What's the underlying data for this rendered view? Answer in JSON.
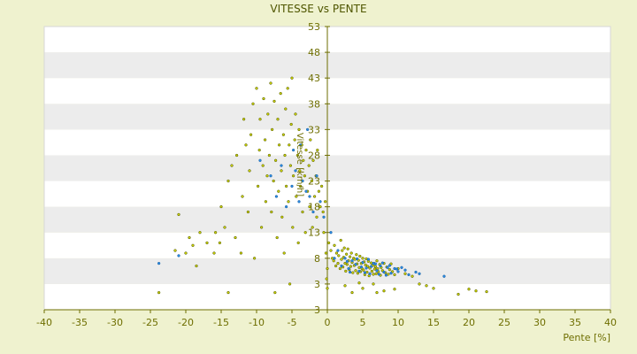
{
  "chart_data": {
    "type": "scatter",
    "title": "VITESSE vs PENTE",
    "xlabel": "Pente [%]",
    "ylabel": "Vitesse [km/h]",
    "xlim": [
      -40,
      40
    ],
    "xticks": [
      "-40",
      "-35",
      "-30",
      "-25",
      "-20",
      "-15",
      "-10",
      "-5",
      "0",
      "5",
      "10",
      "15",
      "20",
      "25",
      "30",
      "35",
      "40"
    ],
    "yticks": [
      "3",
      "3",
      "8",
      "13",
      "18",
      "23",
      "28",
      "33",
      "38",
      "43",
      "48",
      "53"
    ],
    "grid": "alternating horizontal bands",
    "colors": {
      "background": "#eff2cf",
      "band_light": "#ffffff",
      "band_dark": "#ececec",
      "axis": "#6e6e00",
      "tick_text": "#6e6e00",
      "point_olive_fill": "#c8cf00",
      "point_olive_stroke": "#4b5200",
      "point_blue_fill": "#2a8ae0",
      "point_blue_stroke": "#1b5ea0"
    },
    "series": [
      {
        "color": "#c8cf00",
        "points": [
          [
            -23.8,
            2.0
          ],
          [
            -21.5,
            9.5
          ],
          [
            -21.0,
            16.5
          ],
          [
            -20.0,
            9.0
          ],
          [
            -19.5,
            12.0
          ],
          [
            -19.0,
            10.5
          ],
          [
            -18.5,
            6.5
          ],
          [
            -18.0,
            13.0
          ],
          [
            -17.0,
            11.0
          ],
          [
            -16.0,
            9.0
          ],
          [
            -15.8,
            13.0
          ],
          [
            -15.2,
            11.0
          ],
          [
            -15.0,
            18.0
          ],
          [
            -14.5,
            14.0
          ],
          [
            -14.0,
            2.0
          ],
          [
            -14.0,
            23.0
          ],
          [
            -13.5,
            26.0
          ],
          [
            -13.0,
            12.0
          ],
          [
            -12.8,
            28.0
          ],
          [
            -12.2,
            9.0
          ],
          [
            -12.0,
            20.0
          ],
          [
            -11.8,
            35.0
          ],
          [
            -11.5,
            30.0
          ],
          [
            -11.2,
            17.0
          ],
          [
            -11.0,
            25.0
          ],
          [
            -10.8,
            32.0
          ],
          [
            -10.5,
            38.0
          ],
          [
            -10.3,
            8.0
          ],
          [
            -10.0,
            41.0
          ],
          [
            -9.8,
            22.0
          ],
          [
            -9.6,
            29.0
          ],
          [
            -9.5,
            35.0
          ],
          [
            -9.3,
            14.0
          ],
          [
            -9.1,
            26.0
          ],
          [
            -9.0,
            39.0
          ],
          [
            -8.8,
            31.0
          ],
          [
            -8.7,
            19.0
          ],
          [
            -8.5,
            24.0
          ],
          [
            -8.4,
            36.0
          ],
          [
            -8.2,
            28.0
          ],
          [
            -8.0,
            42.0
          ],
          [
            -7.9,
            17.0
          ],
          [
            -7.8,
            33.0
          ],
          [
            -7.6,
            23.0
          ],
          [
            -7.5,
            38.5
          ],
          [
            -7.4,
            2.0
          ],
          [
            -7.3,
            27.0
          ],
          [
            -7.1,
            12.0
          ],
          [
            -7.0,
            35.0
          ],
          [
            -6.9,
            21.0
          ],
          [
            -6.8,
            30.0
          ],
          [
            -6.6,
            40.0
          ],
          [
            -6.5,
            25.0
          ],
          [
            -6.4,
            16.0
          ],
          [
            -6.2,
            32.0
          ],
          [
            -6.1,
            9.0
          ],
          [
            -6.0,
            28.0
          ],
          [
            -5.9,
            37.0
          ],
          [
            -5.8,
            22.0
          ],
          [
            -5.6,
            41.0
          ],
          [
            -5.5,
            19.0
          ],
          [
            -5.4,
            30.0
          ],
          [
            -5.3,
            3.0
          ],
          [
            -5.2,
            26.0
          ],
          [
            -5.1,
            34.0
          ],
          [
            -5.0,
            43.0
          ],
          [
            -4.9,
            14.0
          ],
          [
            -4.8,
            24.0
          ],
          [
            -4.6,
            31.0
          ],
          [
            -4.5,
            36.0
          ],
          [
            -4.4,
            20.0
          ],
          [
            -4.2,
            28.0
          ],
          [
            -4.1,
            11.0
          ],
          [
            -4.0,
            33.0
          ],
          [
            -3.9,
            25.0
          ],
          [
            -3.8,
            22.0
          ],
          [
            -3.6,
            30.0
          ],
          [
            -3.5,
            17.0
          ],
          [
            -3.4,
            27.0
          ],
          [
            -3.2,
            24.0
          ],
          [
            -3.1,
            13.0
          ],
          [
            -3.0,
            29.0
          ],
          [
            -2.8,
            21.0
          ],
          [
            -2.6,
            26.0
          ],
          [
            -2.5,
            18.0
          ],
          [
            -2.4,
            31.0
          ],
          [
            -2.2,
            23.0
          ],
          [
            -2.1,
            14.0
          ],
          [
            -2.0,
            27.0
          ],
          [
            -1.8,
            20.0
          ],
          [
            -1.6,
            24.0
          ],
          [
            -1.5,
            16.0
          ],
          [
            -1.4,
            29.0
          ],
          [
            -1.2,
            21.0
          ],
          [
            -1.0,
            18.0
          ],
          [
            -0.8,
            22.0
          ],
          [
            -0.6,
            17.0
          ],
          [
            -0.5,
            13.0
          ],
          [
            -0.3,
            19.0
          ],
          [
            -0.2,
            9.0
          ],
          [
            -0.1,
            4.0
          ],
          [
            0.0,
            2.5
          ],
          [
            0.0,
            6.0
          ],
          [
            0.2,
            11.0
          ],
          [
            0.5,
            9.5
          ],
          [
            0.7,
            8.0
          ],
          [
            0.9,
            7.5
          ],
          [
            1.0,
            10.5
          ],
          [
            1.2,
            6.5
          ],
          [
            1.3,
            9.0
          ],
          [
            1.5,
            7.0
          ],
          [
            1.6,
            8.5
          ],
          [
            1.8,
            6.0
          ],
          [
            1.9,
            11.5
          ],
          [
            2.0,
            7.8
          ],
          [
            2.1,
            9.5
          ],
          [
            2.2,
            6.3
          ],
          [
            2.3,
            8.2
          ],
          [
            2.4,
            10.0
          ],
          [
            2.5,
            7.0
          ],
          [
            2.6,
            5.5
          ],
          [
            2.7,
            8.8
          ],
          [
            2.8,
            6.8
          ],
          [
            2.9,
            9.8
          ],
          [
            3.0,
            7.5
          ],
          [
            3.1,
            5.8
          ],
          [
            3.2,
            8.3
          ],
          [
            3.3,
            6.4
          ],
          [
            3.4,
            9.0
          ],
          [
            3.5,
            7.2
          ],
          [
            3.6,
            5.2
          ],
          [
            3.7,
            8.0
          ],
          [
            3.8,
            6.6
          ],
          [
            3.9,
            7.8
          ],
          [
            4.0,
            5.6
          ],
          [
            4.1,
            8.7
          ],
          [
            4.2,
            6.9
          ],
          [
            4.3,
            5.1
          ],
          [
            4.4,
            7.6
          ],
          [
            4.5,
            6.2
          ],
          [
            4.6,
            8.4
          ],
          [
            4.7,
            5.4
          ],
          [
            4.8,
            7.0
          ],
          [
            4.9,
            6.0
          ],
          [
            5.0,
            8.0
          ],
          [
            5.1,
            5.7
          ],
          [
            5.2,
            7.3
          ],
          [
            5.3,
            4.8
          ],
          [
            5.4,
            6.7
          ],
          [
            5.5,
            7.9
          ],
          [
            5.6,
            5.3
          ],
          [
            5.7,
            6.4
          ],
          [
            5.8,
            7.4
          ],
          [
            5.9,
            4.6
          ],
          [
            6.0,
            6.1
          ],
          [
            6.2,
            7.1
          ],
          [
            6.3,
            5.5
          ],
          [
            6.4,
            6.6
          ],
          [
            6.5,
            4.9
          ],
          [
            6.6,
            7.0
          ],
          [
            6.7,
            5.9
          ],
          [
            6.8,
            6.4
          ],
          [
            6.9,
            5.0
          ],
          [
            7.0,
            7.5
          ],
          [
            7.1,
            6.0
          ],
          [
            7.2,
            5.4
          ],
          [
            7.4,
            6.8
          ],
          [
            7.5,
            4.7
          ],
          [
            7.6,
            6.2
          ],
          [
            7.8,
            5.6
          ],
          [
            8.0,
            7.0
          ],
          [
            8.2,
            5.2
          ],
          [
            8.4,
            6.3
          ],
          [
            8.6,
            4.9
          ],
          [
            8.8,
            5.8
          ],
          [
            9.0,
            6.9
          ],
          [
            9.2,
            5.4
          ],
          [
            9.5,
            4.8
          ],
          [
            10.0,
            6.0
          ],
          [
            11.0,
            5.0
          ],
          [
            12.0,
            4.5
          ],
          [
            13.0,
            3.0
          ],
          [
            14.0,
            2.8
          ],
          [
            15.0,
            2.5
          ],
          [
            18.5,
            1.8
          ],
          [
            20.0,
            2.4
          ],
          [
            21.0,
            2.2
          ],
          [
            22.5,
            2.1
          ],
          [
            3.5,
            2.0
          ],
          [
            5.0,
            2.5
          ],
          [
            6.5,
            3.0
          ],
          [
            8.0,
            2.2
          ],
          [
            9.5,
            2.4
          ],
          [
            2.5,
            2.8
          ],
          [
            4.5,
            3.2
          ],
          [
            7.0,
            2.0
          ]
        ]
      },
      {
        "color": "#2a8ae0",
        "points": [
          [
            -23.8,
            7.0
          ],
          [
            -21.0,
            8.5
          ],
          [
            -9.5,
            27.0
          ],
          [
            -8.0,
            24.0
          ],
          [
            -7.2,
            20.0
          ],
          [
            -6.5,
            26.0
          ],
          [
            -5.8,
            18.0
          ],
          [
            -5.0,
            22.0
          ],
          [
            -4.5,
            25.0
          ],
          [
            -4.0,
            19.0
          ],
          [
            -3.5,
            23.0
          ],
          [
            -3.0,
            21.0
          ],
          [
            -2.5,
            20.0
          ],
          [
            -2.0,
            17.0
          ],
          [
            -1.5,
            24.0
          ],
          [
            -1.0,
            19.0
          ],
          [
            -0.5,
            16.0
          ],
          [
            -3.8,
            30.0
          ],
          [
            -2.8,
            33.0
          ],
          [
            -4.8,
            29.0
          ],
          [
            0.5,
            13.0
          ],
          [
            1.0,
            8.0
          ],
          [
            1.5,
            9.5
          ],
          [
            2.0,
            6.5
          ],
          [
            2.5,
            8.0
          ],
          [
            3.0,
            6.0
          ],
          [
            3.5,
            7.5
          ],
          [
            4.0,
            6.8
          ],
          [
            4.5,
            5.5
          ],
          [
            5.0,
            7.2
          ],
          [
            5.5,
            6.1
          ],
          [
            6.0,
            5.0
          ],
          [
            6.5,
            7.0
          ],
          [
            7.0,
            5.6
          ],
          [
            7.5,
            6.5
          ],
          [
            8.0,
            5.3
          ],
          [
            8.5,
            6.2
          ],
          [
            9.0,
            5.1
          ],
          [
            9.5,
            6.0
          ],
          [
            10.0,
            5.4
          ],
          [
            10.5,
            6.2
          ],
          [
            11.0,
            5.7
          ],
          [
            11.5,
            4.8
          ],
          [
            12.5,
            5.3
          ],
          [
            13.0,
            5.0
          ],
          [
            16.5,
            4.5
          ],
          [
            4.2,
            7.9
          ],
          [
            5.8,
            7.8
          ],
          [
            6.8,
            6.9
          ],
          [
            7.8,
            7.1
          ],
          [
            8.8,
            6.6
          ],
          [
            9.8,
            5.9
          ],
          [
            3.2,
            5.3
          ],
          [
            4.8,
            6.3
          ],
          [
            6.2,
            6.4
          ],
          [
            7.3,
            4.9
          ],
          [
            8.3,
            4.7
          ],
          [
            5.3,
            5.2
          ],
          [
            2.8,
            7.4
          ]
        ]
      }
    ]
  }
}
